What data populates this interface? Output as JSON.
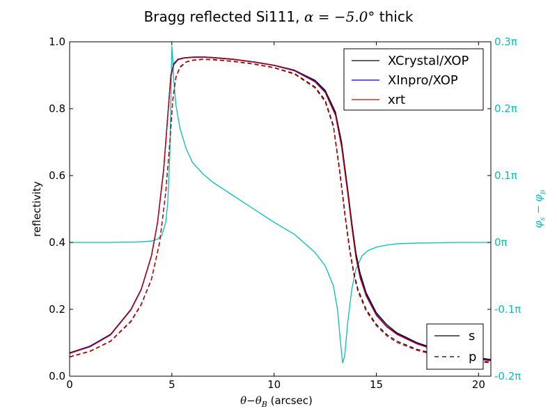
{
  "chart_data": {
    "type": "line",
    "title": {
      "text": "Bragg reflected Si111, ",
      "math": "α = −5.0°",
      "suffix": "  thick"
    },
    "xlabel": {
      "math": "θ−θ",
      "sub": "B",
      "text": "  (arcsec)"
    },
    "ylabel": "reflectivity",
    "y2label": {
      "math": "φ",
      "sub1": "s",
      "mid": " − φ",
      "sub2": "p"
    },
    "xlim": [
      0,
      20.6
    ],
    "ylim": [
      0.0,
      1.0
    ],
    "y2lim": [
      -0.2,
      0.3
    ],
    "x_ticks": [
      "0",
      "5",
      "10",
      "15",
      "20"
    ],
    "y_ticks": [
      "0.0",
      "0.2",
      "0.4",
      "0.6",
      "0.8",
      "1.0"
    ],
    "y2_ticks": [
      "-0.2π",
      "-0.1π",
      "0π",
      "0.1π",
      "0.2π",
      "0.3π"
    ],
    "grid": false,
    "colors": {
      "XCrystal/XOP": "#000000",
      "XInpro/XOP": "#0000CC",
      "xrt": "#CC0000",
      "phase": "#00BFBF"
    },
    "legend_main": {
      "placement": "top-right",
      "entries": [
        "XCrystal/XOP",
        "XInpro/XOP",
        "xrt"
      ]
    },
    "legend_style": {
      "placement": "bottom-right",
      "entries": [
        {
          "label": "s",
          "dash": "solid"
        },
        {
          "label": "p",
          "dash": "dashed"
        }
      ]
    },
    "series": [
      {
        "name": "XCrystal/XOP",
        "polarization": "s",
        "axis": "left",
        "x": [
          0,
          1,
          2,
          3,
          3.5,
          4,
          4.3,
          4.6,
          4.8,
          4.95,
          5.1,
          5.3,
          5.6,
          6,
          6.5,
          7,
          8,
          9,
          10,
          11,
          12,
          12.5,
          13,
          13.3,
          13.6,
          13.8,
          14,
          14.2,
          14.5,
          15,
          15.5,
          16,
          17,
          18,
          19,
          20,
          20.6
        ],
        "y": [
          0.07,
          0.09,
          0.125,
          0.2,
          0.26,
          0.36,
          0.46,
          0.62,
          0.78,
          0.9,
          0.935,
          0.948,
          0.952,
          0.954,
          0.955,
          0.953,
          0.948,
          0.94,
          0.93,
          0.915,
          0.885,
          0.855,
          0.79,
          0.7,
          0.56,
          0.46,
          0.37,
          0.31,
          0.25,
          0.19,
          0.155,
          0.13,
          0.1,
          0.08,
          0.065,
          0.055,
          0.05
        ]
      },
      {
        "name": "XInpro/XOP",
        "polarization": "s",
        "axis": "left",
        "x": [
          0,
          1,
          2,
          3,
          3.5,
          4,
          4.3,
          4.6,
          4.8,
          4.95,
          5.1,
          5.3,
          5.6,
          6,
          6.5,
          7,
          8,
          9,
          10,
          11,
          12,
          12.5,
          13,
          13.3,
          13.6,
          13.8,
          14,
          14.2,
          14.5,
          15,
          15.5,
          16,
          17,
          18,
          19,
          20,
          20.6
        ],
        "y": [
          0.07,
          0.09,
          0.125,
          0.2,
          0.26,
          0.36,
          0.46,
          0.62,
          0.78,
          0.9,
          0.935,
          0.948,
          0.952,
          0.954,
          0.955,
          0.953,
          0.948,
          0.94,
          0.93,
          0.915,
          0.883,
          0.852,
          0.785,
          0.69,
          0.55,
          0.45,
          0.36,
          0.3,
          0.245,
          0.185,
          0.15,
          0.127,
          0.098,
          0.078,
          0.063,
          0.053,
          0.048
        ]
      },
      {
        "name": "xrt",
        "polarization": "s",
        "axis": "left",
        "x": [
          0,
          1,
          2,
          3,
          3.5,
          4,
          4.3,
          4.6,
          4.8,
          4.95,
          5.1,
          5.3,
          5.6,
          6,
          6.5,
          7,
          8,
          9,
          10,
          11,
          12,
          12.5,
          13,
          13.3,
          13.6,
          13.8,
          14,
          14.2,
          14.5,
          15,
          15.5,
          16,
          17,
          18,
          19,
          20,
          20.6
        ],
        "y": [
          0.068,
          0.088,
          0.123,
          0.198,
          0.258,
          0.358,
          0.458,
          0.615,
          0.775,
          0.895,
          0.932,
          0.946,
          0.951,
          0.953,
          0.954,
          0.952,
          0.947,
          0.939,
          0.929,
          0.913,
          0.88,
          0.848,
          0.78,
          0.685,
          0.545,
          0.445,
          0.355,
          0.295,
          0.24,
          0.182,
          0.148,
          0.125,
          0.096,
          0.076,
          0.061,
          0.051,
          0.046
        ]
      },
      {
        "name": "XCrystal/XOP",
        "polarization": "p",
        "axis": "left",
        "x": [
          0,
          1,
          2,
          3,
          3.5,
          4,
          4.4,
          4.7,
          4.9,
          5.05,
          5.2,
          5.4,
          5.7,
          6,
          6.5,
          7,
          8,
          9,
          10,
          11,
          12,
          12.5,
          12.9,
          13.2,
          13.5,
          13.7,
          13.9,
          14.1,
          14.5,
          15,
          15.5,
          16,
          17,
          18,
          19,
          20,
          20.6
        ],
        "y": [
          0.058,
          0.075,
          0.105,
          0.165,
          0.215,
          0.29,
          0.4,
          0.55,
          0.7,
          0.83,
          0.895,
          0.925,
          0.94,
          0.945,
          0.948,
          0.947,
          0.942,
          0.934,
          0.923,
          0.905,
          0.865,
          0.825,
          0.75,
          0.62,
          0.47,
          0.38,
          0.31,
          0.26,
          0.2,
          0.155,
          0.125,
          0.105,
          0.08,
          0.065,
          0.054,
          0.046,
          0.042
        ]
      },
      {
        "name": "xrt",
        "polarization": "p",
        "axis": "left",
        "x": [
          0,
          1,
          2,
          3,
          3.5,
          4,
          4.4,
          4.7,
          4.9,
          5.05,
          5.2,
          5.4,
          5.7,
          6,
          6.5,
          7,
          8,
          9,
          10,
          11,
          12,
          12.5,
          12.9,
          13.2,
          13.5,
          13.7,
          13.9,
          14.1,
          14.5,
          15,
          15.5,
          16,
          17,
          18,
          19,
          20,
          20.6
        ],
        "y": [
          0.057,
          0.074,
          0.104,
          0.163,
          0.213,
          0.288,
          0.398,
          0.548,
          0.698,
          0.828,
          0.893,
          0.923,
          0.939,
          0.944,
          0.947,
          0.946,
          0.941,
          0.933,
          0.922,
          0.903,
          0.862,
          0.82,
          0.745,
          0.612,
          0.462,
          0.372,
          0.303,
          0.253,
          0.195,
          0.151,
          0.121,
          0.101,
          0.077,
          0.062,
          0.051,
          0.043,
          0.04
        ]
      },
      {
        "name": "phase (φs − φp)",
        "axis": "right",
        "units": "π",
        "x": [
          0,
          1,
          2,
          3,
          3.5,
          4,
          4.3,
          4.5,
          4.7,
          4.8,
          4.9,
          4.95,
          5.0,
          5.05,
          5.1,
          5.2,
          5.4,
          5.7,
          6,
          6.5,
          7,
          8,
          9,
          10,
          11,
          12,
          12.5,
          12.9,
          13.1,
          13.25,
          13.35,
          13.45,
          13.6,
          13.8,
          14,
          14.3,
          14.6,
          15,
          15.5,
          16,
          17,
          18,
          19,
          20,
          20.6
        ],
        "y": [
          0.0,
          0.0,
          0.0,
          0.0005,
          0.001,
          0.002,
          0.005,
          0.01,
          0.03,
          0.06,
          0.13,
          0.21,
          0.293,
          0.27,
          0.24,
          0.205,
          0.17,
          0.14,
          0.12,
          0.103,
          0.09,
          0.07,
          0.05,
          0.03,
          0.012,
          -0.015,
          -0.035,
          -0.065,
          -0.1,
          -0.15,
          -0.18,
          -0.17,
          -0.12,
          -0.07,
          -0.04,
          -0.02,
          -0.012,
          -0.007,
          -0.004,
          -0.002,
          -0.001,
          -0.0005,
          0.0,
          0.0,
          0.0
        ]
      }
    ]
  }
}
